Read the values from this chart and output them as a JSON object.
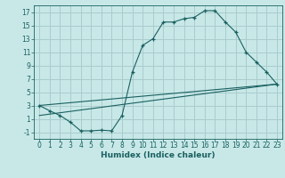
{
  "bg_color": "#c8e8e8",
  "grid_color": "#aacccc",
  "line_color": "#1a6060",
  "xlabel": "Humidex (Indice chaleur)",
  "xlim": [
    -0.5,
    23.5
  ],
  "ylim": [
    -2,
    18
  ],
  "xticks": [
    0,
    1,
    2,
    3,
    4,
    5,
    6,
    7,
    8,
    9,
    10,
    11,
    12,
    13,
    14,
    15,
    16,
    17,
    18,
    19,
    20,
    21,
    22,
    23
  ],
  "yticks": [
    -1,
    1,
    3,
    5,
    7,
    9,
    11,
    13,
    15,
    17
  ],
  "curve_x": [
    0,
    1,
    2,
    3,
    4,
    5,
    6,
    7,
    8,
    9,
    10,
    11,
    12,
    13,
    14,
    15,
    16,
    17,
    18,
    19,
    20,
    21,
    22,
    23
  ],
  "curve_y": [
    3.0,
    2.2,
    1.5,
    0.5,
    -0.8,
    -0.8,
    -0.7,
    -0.8,
    1.5,
    8.0,
    12.0,
    13.0,
    15.5,
    15.5,
    16.0,
    16.2,
    17.2,
    17.2,
    15.5,
    14.0,
    11.0,
    9.5,
    8.0,
    6.2
  ],
  "line1_x": [
    0,
    23
  ],
  "line1_y": [
    3.0,
    6.2
  ],
  "line2_x": [
    0,
    23
  ],
  "line2_y": [
    1.5,
    6.2
  ],
  "tick_fontsize": 5.5,
  "xlabel_fontsize": 6.5
}
